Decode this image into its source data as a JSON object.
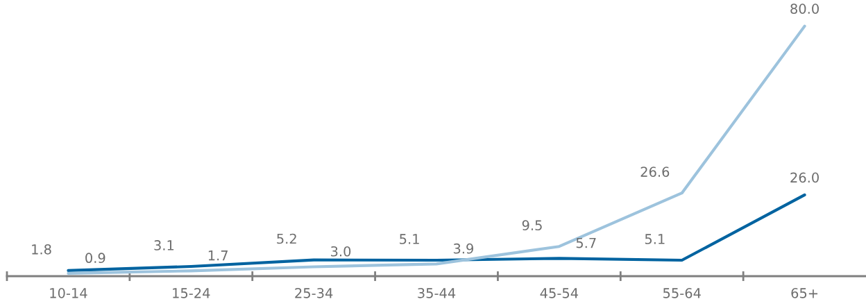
{
  "chart_data": {
    "type": "line",
    "categories": [
      "10-14",
      "15-24",
      "25-34",
      "35-44",
      "45-54",
      "55-64",
      "65+"
    ],
    "series": [
      {
        "color": "#0063a0",
        "values": [
          1.8,
          3.1,
          5.2,
          5.1,
          5.7,
          5.1,
          26.0
        ],
        "value_labels": [
          "1.8",
          "3.1",
          "5.2",
          "5.1",
          "5.7",
          "5.1",
          "26.0"
        ]
      },
      {
        "color": "#9dc3dd",
        "values": [
          0.9,
          1.7,
          3.0,
          3.9,
          9.5,
          26.6,
          80.0
        ],
        "value_labels": [
          "0.9",
          "1.7",
          "3.0",
          "3.9",
          "9.5",
          "26.6",
          "80.0"
        ]
      }
    ],
    "tick_labels": "x",
    "grid": false,
    "legend": false,
    "marker": "none",
    "line_style": "solid"
  }
}
